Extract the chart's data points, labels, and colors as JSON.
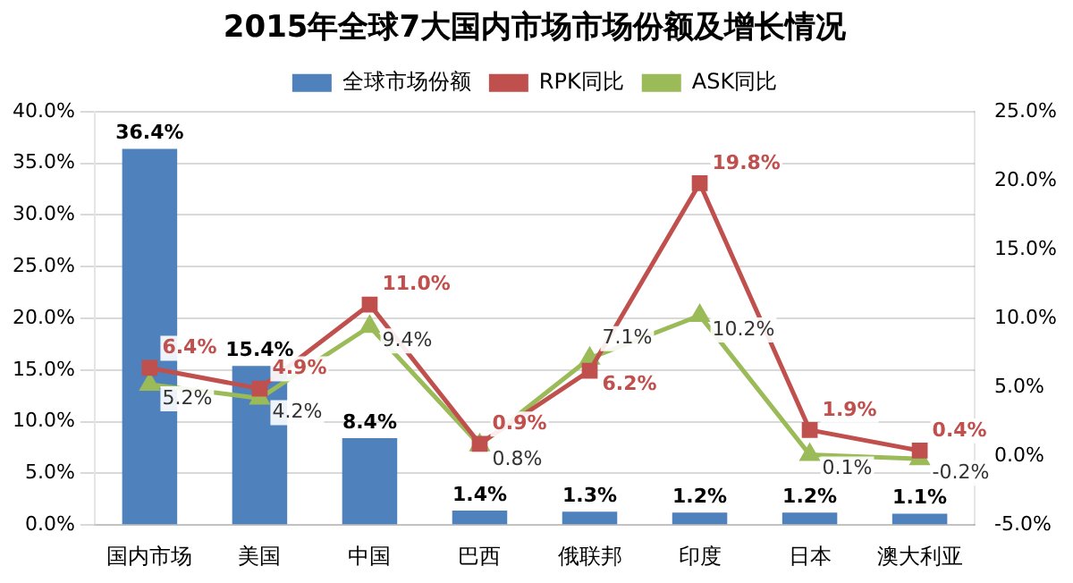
{
  "chart_data": {
    "type": "bar",
    "title": "2015年全球7大国内市场市场份额及增长情况",
    "categories": [
      "国内市场",
      "美国",
      "中国",
      "巴西",
      "俄联邦",
      "印度",
      "日本",
      "澳大利亚"
    ],
    "series": [
      {
        "name": "全球市场份额",
        "color": "#4f81bd",
        "values": [
          36.4,
          15.4,
          8.4,
          1.4,
          1.3,
          1.2,
          1.2,
          1.1
        ],
        "value_labels": [
          "36.4%",
          "15.4%",
          "8.4%",
          "1.4%",
          "1.3%",
          "1.2%",
          "1.2%",
          "1.1%"
        ]
      },
      {
        "name": "RPK同比",
        "type": "line",
        "axis": "y2",
        "marker": "square",
        "color": "#c0504d",
        "values": [
          6.4,
          4.9,
          11.0,
          0.9,
          6.2,
          19.8,
          1.9,
          0.4
        ],
        "value_labels": [
          "6.4%",
          "4.9%",
          "11.0%",
          "0.9%",
          "6.2%",
          "19.8%",
          "1.9%",
          "0.4%"
        ]
      },
      {
        "name": "ASK同比",
        "type": "line",
        "axis": "y2",
        "marker": "triangle",
        "color": "#9bbb59",
        "values": [
          5.2,
          4.2,
          9.4,
          0.8,
          7.1,
          10.2,
          0.1,
          -0.2
        ],
        "value_labels": [
          "5.2%",
          "4.2%",
          "9.4%",
          "0.8%",
          "7.1%",
          "10.2%",
          "0.1%",
          "-0.2%"
        ]
      }
    ],
    "ylim": [
      0,
      40
    ],
    "yticks": [
      {
        "value": 0,
        "label": "0.0%"
      },
      {
        "value": 5,
        "label": "5.0%"
      },
      {
        "value": 10,
        "label": "10.0%"
      },
      {
        "value": 15,
        "label": "15.0%"
      },
      {
        "value": 20,
        "label": "20.0%"
      },
      {
        "value": 25,
        "label": "25.0%"
      },
      {
        "value": 30,
        "label": "30.0%"
      },
      {
        "value": 35,
        "label": "35.0%"
      },
      {
        "value": 40,
        "label": "40.0%"
      }
    ],
    "y2lim": [
      -5,
      25
    ],
    "y2ticks": [
      {
        "value": -5,
        "label": "-5.0%"
      },
      {
        "value": 0,
        "label": "0.0%"
      },
      {
        "value": 5,
        "label": "5.0%"
      },
      {
        "value": 10,
        "label": "10.0%"
      },
      {
        "value": 15,
        "label": "15.0%"
      },
      {
        "value": 20,
        "label": "20.0%"
      },
      {
        "value": 25,
        "label": "25.0%"
      }
    ],
    "grid": "y",
    "legend": "top",
    "line_style": "solid"
  }
}
